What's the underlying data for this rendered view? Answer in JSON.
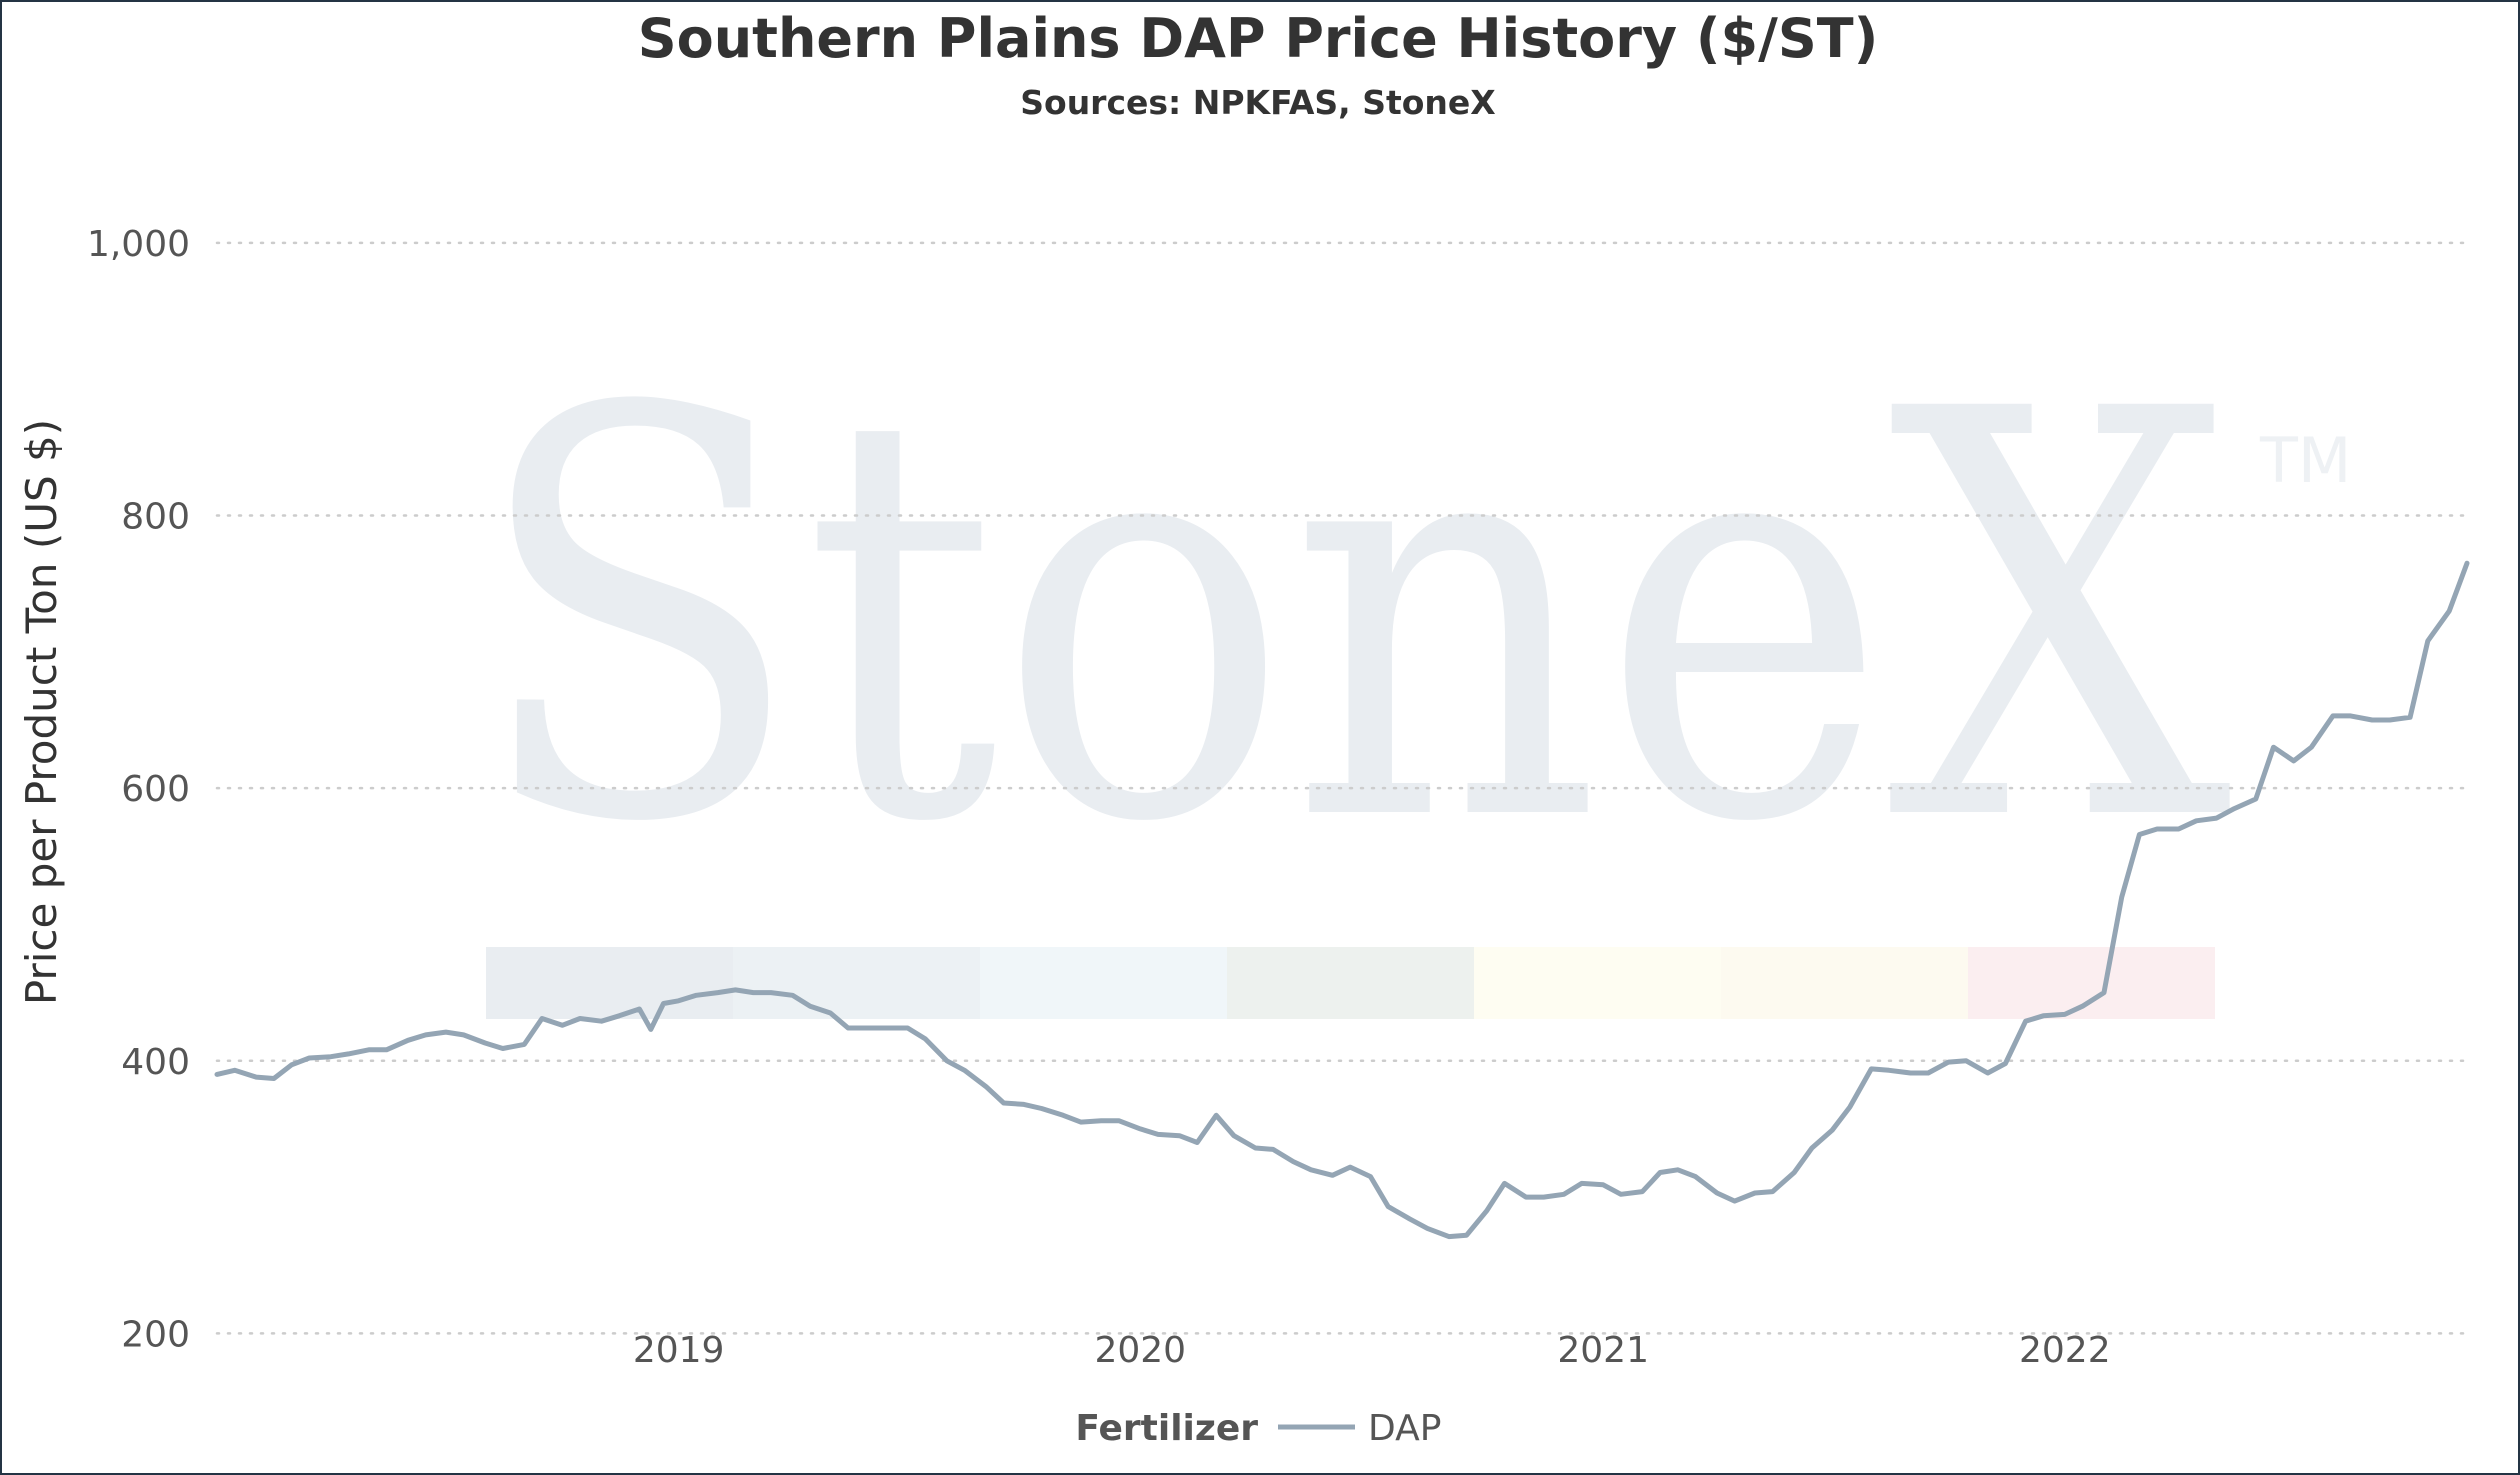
{
  "chart_data": {
    "type": "line",
    "title": "Southern Plains DAP Price History ($/ST)",
    "subtitle": "Sources: NPKFAS, StoneX",
    "xlabel": "",
    "ylabel": "Price per Product Ton (US $)",
    "ylim": [
      190,
      1030
    ],
    "yticks": [
      200,
      400,
      600,
      800,
      1000
    ],
    "ytick_labels": [
      "200",
      "400",
      "600",
      "800",
      "1,000"
    ],
    "xlim": [
      "2018-01-01",
      "2022-11-15"
    ],
    "xticks": [
      "2019-01-01",
      "2020-01-01",
      "2021-01-01",
      "2022-01-01"
    ],
    "xtick_labels": [
      "2019",
      "2020",
      "2021",
      "2022"
    ],
    "grid": "horizontal dotted",
    "legend": {
      "title": "Fertilizer",
      "placement": "bottom-center"
    },
    "watermark": "StoneX",
    "watermark_tm": "TM",
    "colors": {
      "line": "#94a5b4",
      "grid": "#cccccc",
      "watermark": "#e9edf1",
      "bands": [
        "#e9edf1",
        "#ecf1f4",
        "#f0f6f9",
        "#edf1ee",
        "#fefdf2",
        "#fdfaf0",
        "#fbeef0"
      ]
    },
    "series": [
      {
        "name": "DAP",
        "points": [
          [
            "2018-01-01",
            390
          ],
          [
            "2018-01-15",
            393
          ],
          [
            "2018-02-01",
            388
          ],
          [
            "2018-02-15",
            387
          ],
          [
            "2018-03-01",
            397
          ],
          [
            "2018-03-15",
            402
          ],
          [
            "2018-04-01",
            403
          ],
          [
            "2018-04-15",
            405
          ],
          [
            "2018-05-01",
            408
          ],
          [
            "2018-05-15",
            408
          ],
          [
            "2018-06-01",
            415
          ],
          [
            "2018-06-15",
            419
          ],
          [
            "2018-07-01",
            421
          ],
          [
            "2018-07-15",
            419
          ],
          [
            "2018-08-01",
            413
          ],
          [
            "2018-08-15",
            409
          ],
          [
            "2018-09-01",
            412
          ],
          [
            "2018-09-15",
            431
          ],
          [
            "2018-10-01",
            426
          ],
          [
            "2018-10-15",
            431
          ],
          [
            "2018-11-01",
            429
          ],
          [
            "2018-11-15",
            433
          ],
          [
            "2018-12-01",
            438
          ],
          [
            "2018-12-10",
            423
          ],
          [
            "2018-12-20",
            442
          ],
          [
            "2019-01-01",
            444
          ],
          [
            "2019-01-15",
            448
          ],
          [
            "2019-02-01",
            450
          ],
          [
            "2019-02-15",
            452
          ],
          [
            "2019-03-01",
            450
          ],
          [
            "2019-03-15",
            450
          ],
          [
            "2019-04-01",
            448
          ],
          [
            "2019-04-15",
            440
          ],
          [
            "2019-05-01",
            435
          ],
          [
            "2019-05-15",
            424
          ],
          [
            "2019-06-01",
            424
          ],
          [
            "2019-06-15",
            424
          ],
          [
            "2019-07-01",
            424
          ],
          [
            "2019-07-15",
            416
          ],
          [
            "2019-08-01",
            400
          ],
          [
            "2019-08-15",
            393
          ],
          [
            "2019-09-01",
            381
          ],
          [
            "2019-09-15",
            369
          ],
          [
            "2019-10-01",
            368
          ],
          [
            "2019-10-15",
            365
          ],
          [
            "2019-11-01",
            360
          ],
          [
            "2019-11-15",
            355
          ],
          [
            "2019-12-01",
            356
          ],
          [
            "2019-12-15",
            356
          ],
          [
            "2020-01-01",
            350
          ],
          [
            "2020-01-15",
            346
          ],
          [
            "2020-02-01",
            345
          ],
          [
            "2020-02-15",
            340
          ],
          [
            "2020-03-01",
            360
          ],
          [
            "2020-03-15",
            345
          ],
          [
            "2020-04-01",
            336
          ],
          [
            "2020-04-15",
            335
          ],
          [
            "2020-05-01",
            326
          ],
          [
            "2020-05-15",
            320
          ],
          [
            "2020-06-01",
            316
          ],
          [
            "2020-06-15",
            322
          ],
          [
            "2020-07-01",
            315
          ],
          [
            "2020-07-15",
            293
          ],
          [
            "2020-08-01",
            284
          ],
          [
            "2020-08-15",
            277
          ],
          [
            "2020-09-01",
            271
          ],
          [
            "2020-09-15",
            272
          ],
          [
            "2020-10-01",
            290
          ],
          [
            "2020-10-15",
            310
          ],
          [
            "2020-11-01",
            300
          ],
          [
            "2020-11-15",
            300
          ],
          [
            "2020-12-01",
            302
          ],
          [
            "2020-12-15",
            310
          ],
          [
            "2021-01-01",
            309
          ],
          [
            "2021-01-15",
            302
          ],
          [
            "2021-02-01",
            304
          ],
          [
            "2021-02-15",
            318
          ],
          [
            "2021-03-01",
            320
          ],
          [
            "2021-03-15",
            315
          ],
          [
            "2021-04-01",
            303
          ],
          [
            "2021-04-15",
            297
          ],
          [
            "2021-05-01",
            303
          ],
          [
            "2021-05-15",
            304
          ],
          [
            "2021-06-01",
            318
          ],
          [
            "2021-06-15",
            336
          ],
          [
            "2021-07-01",
            349
          ],
          [
            "2021-07-15",
            366
          ],
          [
            "2021-08-01",
            394
          ],
          [
            "2021-08-15",
            393
          ],
          [
            "2021-09-01",
            391
          ],
          [
            "2021-09-15",
            391
          ],
          [
            "2021-10-01",
            399
          ],
          [
            "2021-10-15",
            400
          ],
          [
            "2021-11-01",
            391
          ],
          [
            "2021-11-15",
            398
          ],
          [
            "2021-12-01",
            429
          ],
          [
            "2021-12-15",
            433
          ],
          [
            "2022-01-01",
            434
          ],
          [
            "2022-01-15",
            440
          ],
          [
            "2022-02-01",
            450
          ],
          [
            "2022-02-15",
            520
          ],
          [
            "2022-03-01",
            566
          ],
          [
            "2022-03-15",
            570
          ],
          [
            "2022-04-01",
            570
          ],
          [
            "2022-04-15",
            576
          ],
          [
            "2022-05-01",
            578
          ],
          [
            "2022-05-15",
            585
          ],
          [
            "2022-06-01",
            592
          ],
          [
            "2022-06-15",
            630
          ],
          [
            "2022-07-01",
            620
          ],
          [
            "2022-07-15",
            630
          ],
          [
            "2022-08-01",
            653
          ],
          [
            "2022-08-15",
            653
          ],
          [
            "2022-09-01",
            650
          ],
          [
            "2022-09-15",
            650
          ],
          [
            "2022-10-01",
            652
          ],
          [
            "2022-10-15",
            708
          ],
          [
            "2022-11-01",
            730
          ],
          [
            "2022-11-15",
            765
          ]
        ]
      }
    ]
  }
}
